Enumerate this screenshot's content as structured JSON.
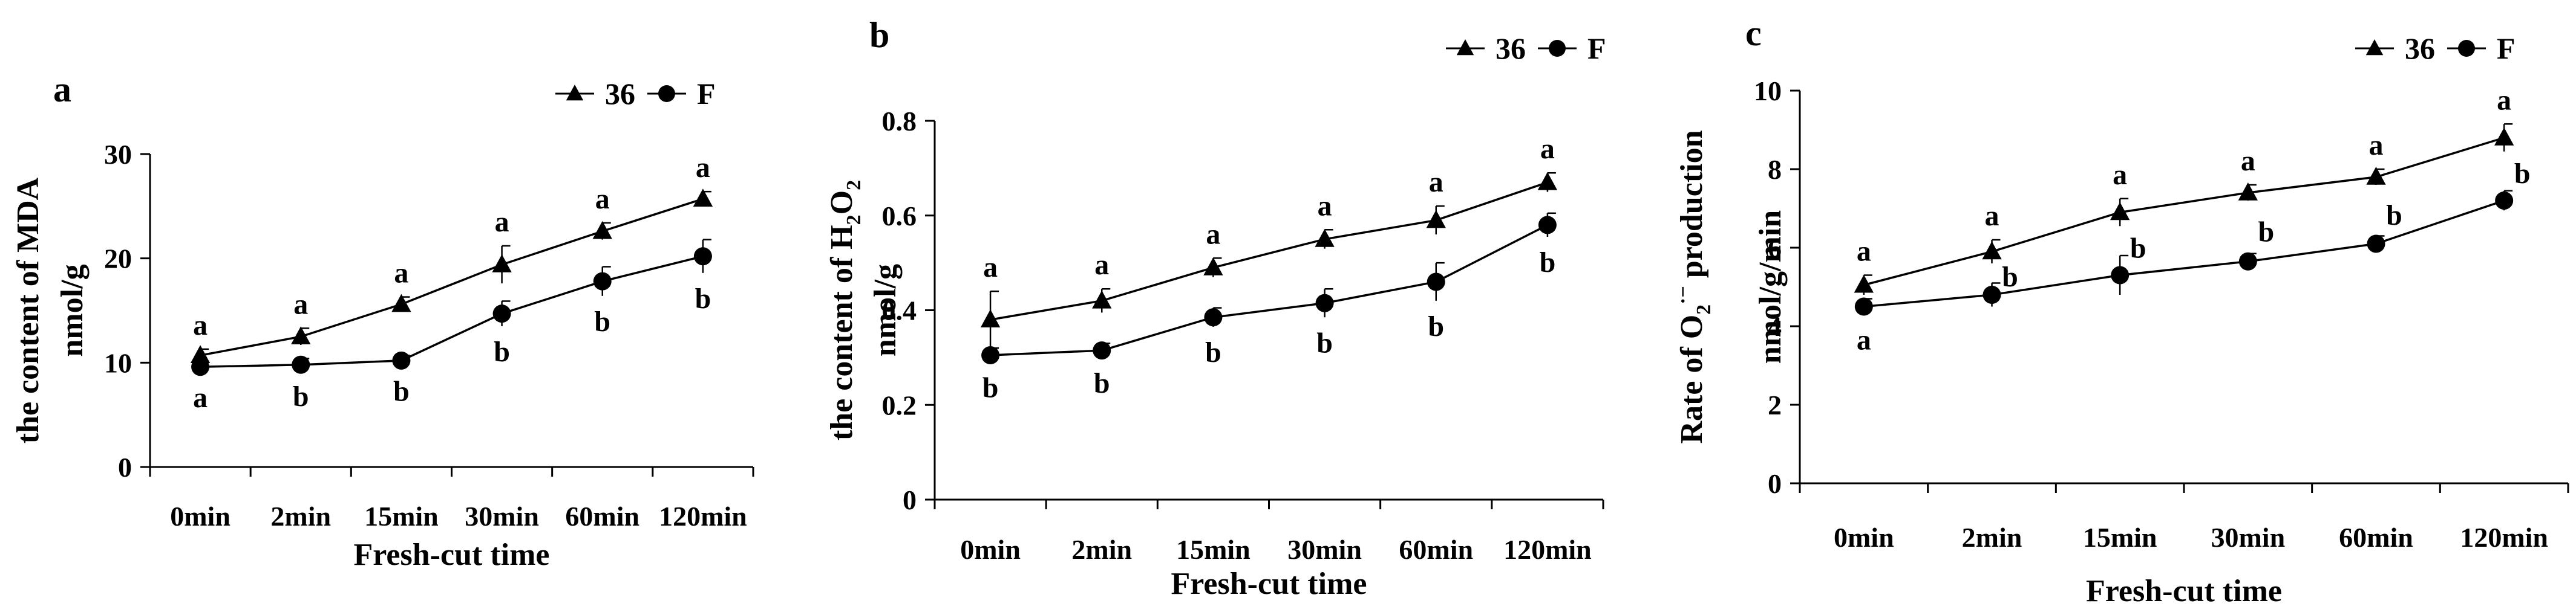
{
  "chart_data": [
    {
      "panel_label": "a",
      "type": "line",
      "categories": [
        "0min",
        "2min",
        "15min",
        "30min",
        "60min",
        "120min"
      ],
      "xlabel": "Fresh-cut time",
      "ylabel_parts": [
        "the content of MDA",
        "nmol/g"
      ],
      "ylim": [
        0,
        30
      ],
      "yticks": [
        "0",
        "10",
        "20",
        "30"
      ],
      "legend": {
        "position": "top-right",
        "entries": [
          "36",
          "F"
        ]
      },
      "series": [
        {
          "name": "36",
          "marker": "triangle",
          "values": [
            10.7,
            12.5,
            15.6,
            19.4,
            22.6,
            25.7
          ],
          "errors": [
            0.6,
            0.8,
            0.7,
            1.8,
            0.8,
            0.7
          ],
          "sig": [
            "a",
            "a",
            "a",
            "a",
            "a",
            "a"
          ]
        },
        {
          "name": "F",
          "marker": "circle",
          "values": [
            9.6,
            9.8,
            10.2,
            14.7,
            17.8,
            20.2
          ],
          "errors": [
            0.5,
            0.6,
            0.5,
            1.2,
            1.4,
            1.6
          ],
          "sig": [
            "a",
            "b",
            "b",
            "b",
            "b",
            "b"
          ]
        }
      ]
    },
    {
      "panel_label": "b",
      "type": "line",
      "categories": [
        "0min",
        "2min",
        "15min",
        "30min",
        "60min",
        "120min"
      ],
      "xlabel": "Fresh-cut time",
      "ylabel_parts": [
        "the content of H",
        "2",
        "O",
        "2",
        "nmol/g"
      ],
      "ylim": [
        0,
        0.8
      ],
      "yticks": [
        "0",
        "0.2",
        "0.4",
        "0.6",
        "0.8"
      ],
      "legend": {
        "position": "top-right",
        "entries": [
          "36",
          "F"
        ]
      },
      "series": [
        {
          "name": "36",
          "marker": "triangle",
          "values": [
            0.38,
            0.42,
            0.49,
            0.55,
            0.59,
            0.67
          ],
          "errors": [
            0.06,
            0.025,
            0.02,
            0.02,
            0.03,
            0.02
          ],
          "sig": [
            "a",
            "a",
            "a",
            "a",
            "a",
            "a"
          ]
        },
        {
          "name": "F",
          "marker": "circle",
          "values": [
            0.305,
            0.315,
            0.385,
            0.415,
            0.46,
            0.58
          ],
          "errors": [
            0.015,
            0.015,
            0.02,
            0.03,
            0.04,
            0.025
          ],
          "sig": [
            "b",
            "b",
            "b",
            "b",
            "b",
            "b"
          ]
        }
      ]
    },
    {
      "panel_label": "c",
      "type": "line",
      "categories": [
        "0min",
        "2min",
        "15min",
        "30min",
        "60min",
        "120min"
      ],
      "xlabel": "Fresh-cut time",
      "ylabel_parts": [
        "Rate of O",
        "2",
        "·−",
        " production",
        "nmol/g/min"
      ],
      "ylim": [
        0,
        10
      ],
      "yticks": [
        "0",
        "2",
        "4",
        "6",
        "8",
        "10"
      ],
      "legend": {
        "position": "top-right",
        "entries": [
          "36",
          "F"
        ]
      },
      "series": [
        {
          "name": "36",
          "marker": "triangle",
          "values": [
            5.05,
            5.9,
            6.9,
            7.4,
            7.8,
            8.8
          ],
          "errors": [
            0.25,
            0.3,
            0.35,
            0.2,
            0.2,
            0.35
          ],
          "sig": [
            "a",
            "a",
            "a",
            "a",
            "a",
            "a"
          ]
        },
        {
          "name": "F",
          "marker": "circle",
          "values": [
            4.5,
            4.8,
            5.3,
            5.65,
            6.1,
            7.2
          ],
          "errors": [
            0.2,
            0.3,
            0.5,
            0.2,
            0.2,
            0.25
          ],
          "sig": [
            "a",
            "b",
            "b",
            "b",
            "b",
            "b"
          ]
        }
      ]
    }
  ]
}
